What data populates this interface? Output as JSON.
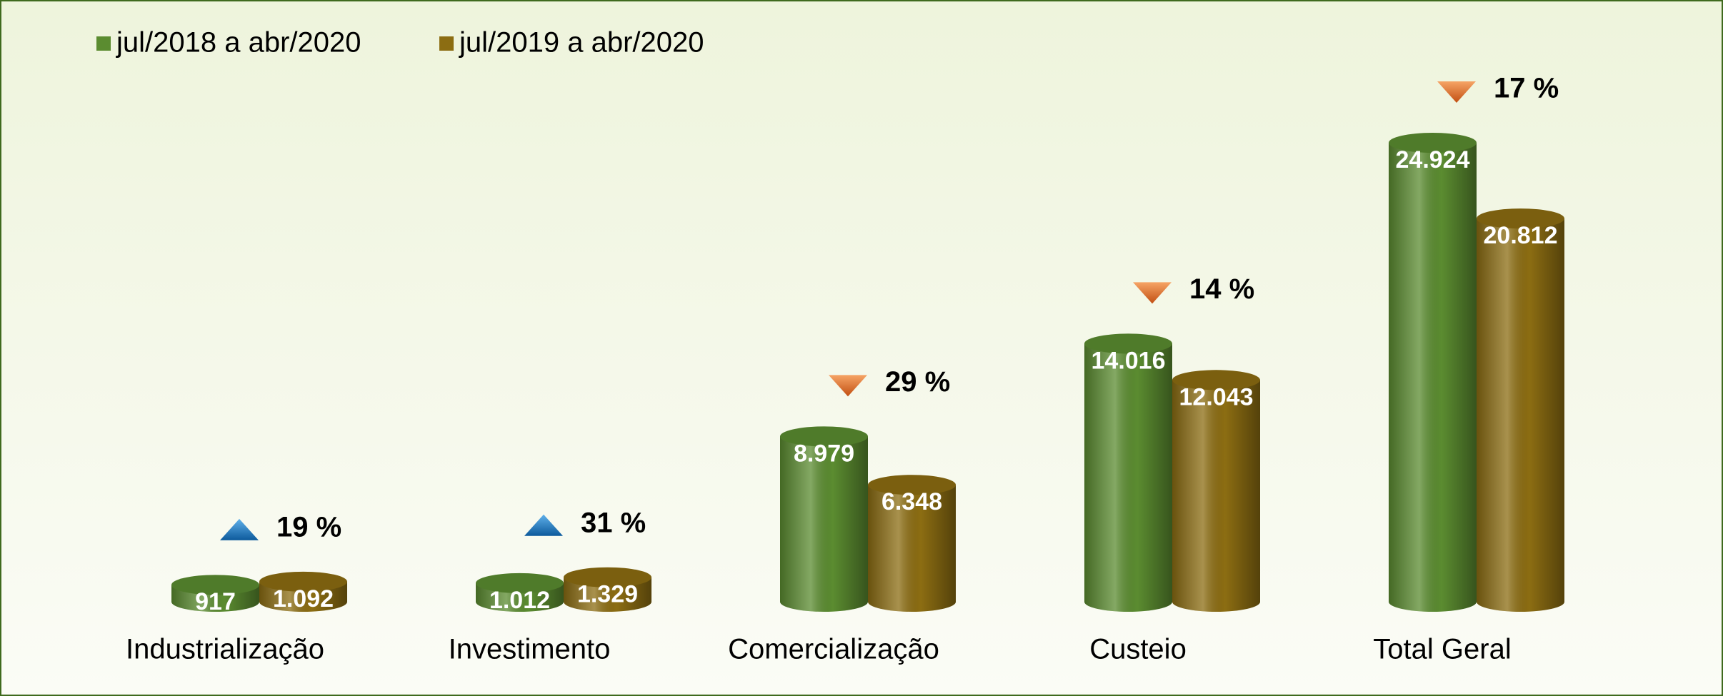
{
  "chart_data": {
    "type": "bar",
    "categories": [
      "Industrialização",
      "Investimento",
      "Comercialização",
      "Custeio",
      "Total Geral"
    ],
    "series": [
      {
        "name": "jul/2018 a abr/2020",
        "color": "#5b8c30",
        "values": [
          917,
          1012,
          8979,
          14016,
          24924
        ],
        "value_labels": [
          "917",
          "1.012",
          "8.979",
          "14.016",
          "24.924"
        ]
      },
      {
        "name": "jul/2019 a abr/2020",
        "color": "#8c6d12",
        "values": [
          1092,
          1329,
          6348,
          12043,
          20812
        ],
        "value_labels": [
          "1.092",
          "1.329",
          "6.348",
          "12.043",
          "20.812"
        ]
      }
    ],
    "annotations": [
      {
        "text": "19 %",
        "direction": "up"
      },
      {
        "text": "31 %",
        "direction": "up"
      },
      {
        "text": "29 %",
        "direction": "down"
      },
      {
        "text": "14 %",
        "direction": "down"
      },
      {
        "text": "17 %",
        "direction": "down"
      }
    ],
    "legend": "top-left"
  }
}
